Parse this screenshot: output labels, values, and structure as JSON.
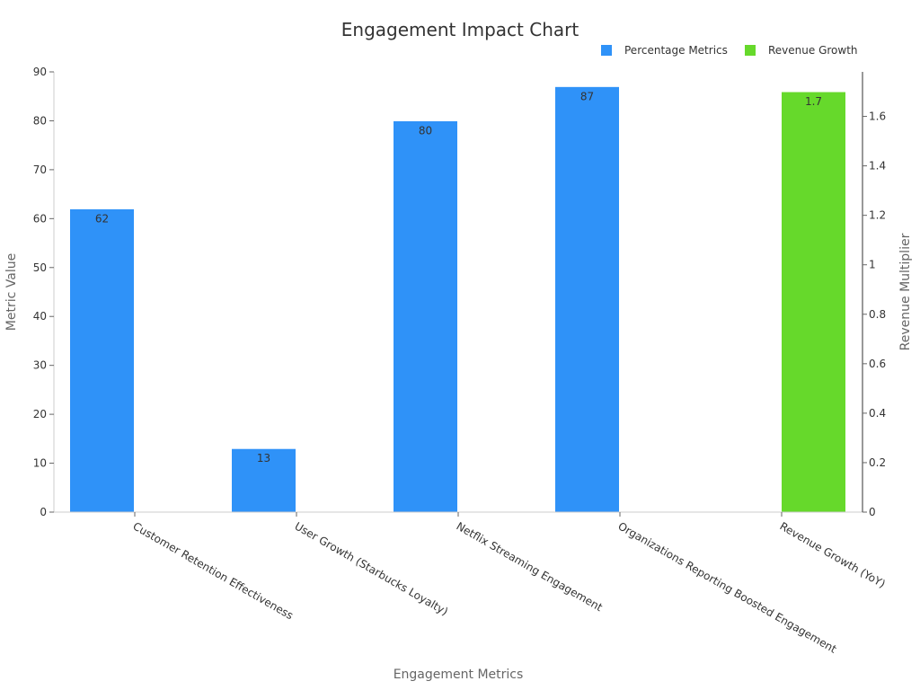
{
  "chart_data": {
    "type": "bar",
    "title": "Engagement Impact Chart",
    "xlabel": "Engagement Metrics",
    "ylabel": "Metric Value",
    "y2label": "Revenue Multiplier",
    "categories": [
      "Customer Retention Effectiveness",
      "User Growth (Starbucks Loyalty)",
      "Netflix Streaming Engagement",
      "Organizations Reporting Boosted Engagement",
      "Revenue Growth (YoY)"
    ],
    "ylim": [
      0,
      90
    ],
    "y2lim": [
      0,
      1.78
    ],
    "yticks": [
      0,
      10,
      20,
      30,
      40,
      50,
      60,
      70,
      80,
      90
    ],
    "y2ticks": [
      "0",
      "0.2",
      "0.4",
      "0.6",
      "0.8",
      "1",
      "1.2",
      "1.4",
      "1.6"
    ],
    "y2tick_values": [
      0,
      0.2,
      0.4,
      0.6,
      0.8,
      1,
      1.2,
      1.4,
      1.6
    ],
    "legend_position": "top-right",
    "grid": false,
    "series": [
      {
        "name": "Percentage Metrics",
        "axis": "left",
        "color": "#2f92f8",
        "values": [
          62,
          13,
          80,
          87,
          null
        ],
        "labels": [
          "62",
          "13",
          "80",
          "87",
          ""
        ]
      },
      {
        "name": "Revenue Growth",
        "axis": "right",
        "color": "#66d92b",
        "values": [
          null,
          null,
          null,
          null,
          1.7
        ],
        "labels": [
          "",
          "",
          "",
          "",
          "1.7"
        ]
      }
    ]
  }
}
